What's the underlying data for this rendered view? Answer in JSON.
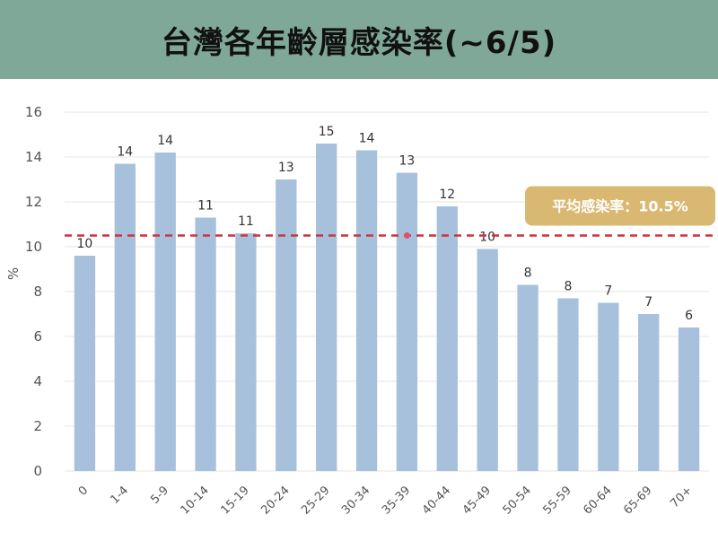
{
  "colors": {
    "header_bg": "#7fa898",
    "bar": "#a7c1dc",
    "avg_line": "#c8343f",
    "badge_bg": "#d9b872",
    "grid": "#e6e6e6"
  },
  "chart_data": {
    "type": "bar",
    "title": "台灣各年齡層感染率(~6/5)",
    "ylabel": "%",
    "xlabel": "",
    "ylim": [
      0,
      16
    ],
    "yticks": [
      0,
      2,
      4,
      6,
      8,
      10,
      12,
      14,
      16
    ],
    "grid": true,
    "categories": [
      "0",
      "1-4",
      "5-9",
      "10-14",
      "15-19",
      "20-24",
      "25-29",
      "30-34",
      "35-39",
      "40-44",
      "45-49",
      "50-54",
      "55-59",
      "60-64",
      "65-69",
      "70+"
    ],
    "values": [
      9.6,
      13.7,
      14.2,
      11.3,
      10.6,
      13.0,
      14.6,
      14.3,
      13.3,
      11.8,
      9.9,
      8.3,
      7.7,
      7.5,
      7.0,
      6.4
    ],
    "data_labels": [
      "10",
      "14",
      "14",
      "11",
      "11",
      "13",
      "15",
      "14",
      "13",
      "12",
      "10",
      "8",
      "8",
      "7",
      "7",
      "6"
    ],
    "average": {
      "value": 10.5,
      "label": "平均感染率：10.5%"
    }
  }
}
